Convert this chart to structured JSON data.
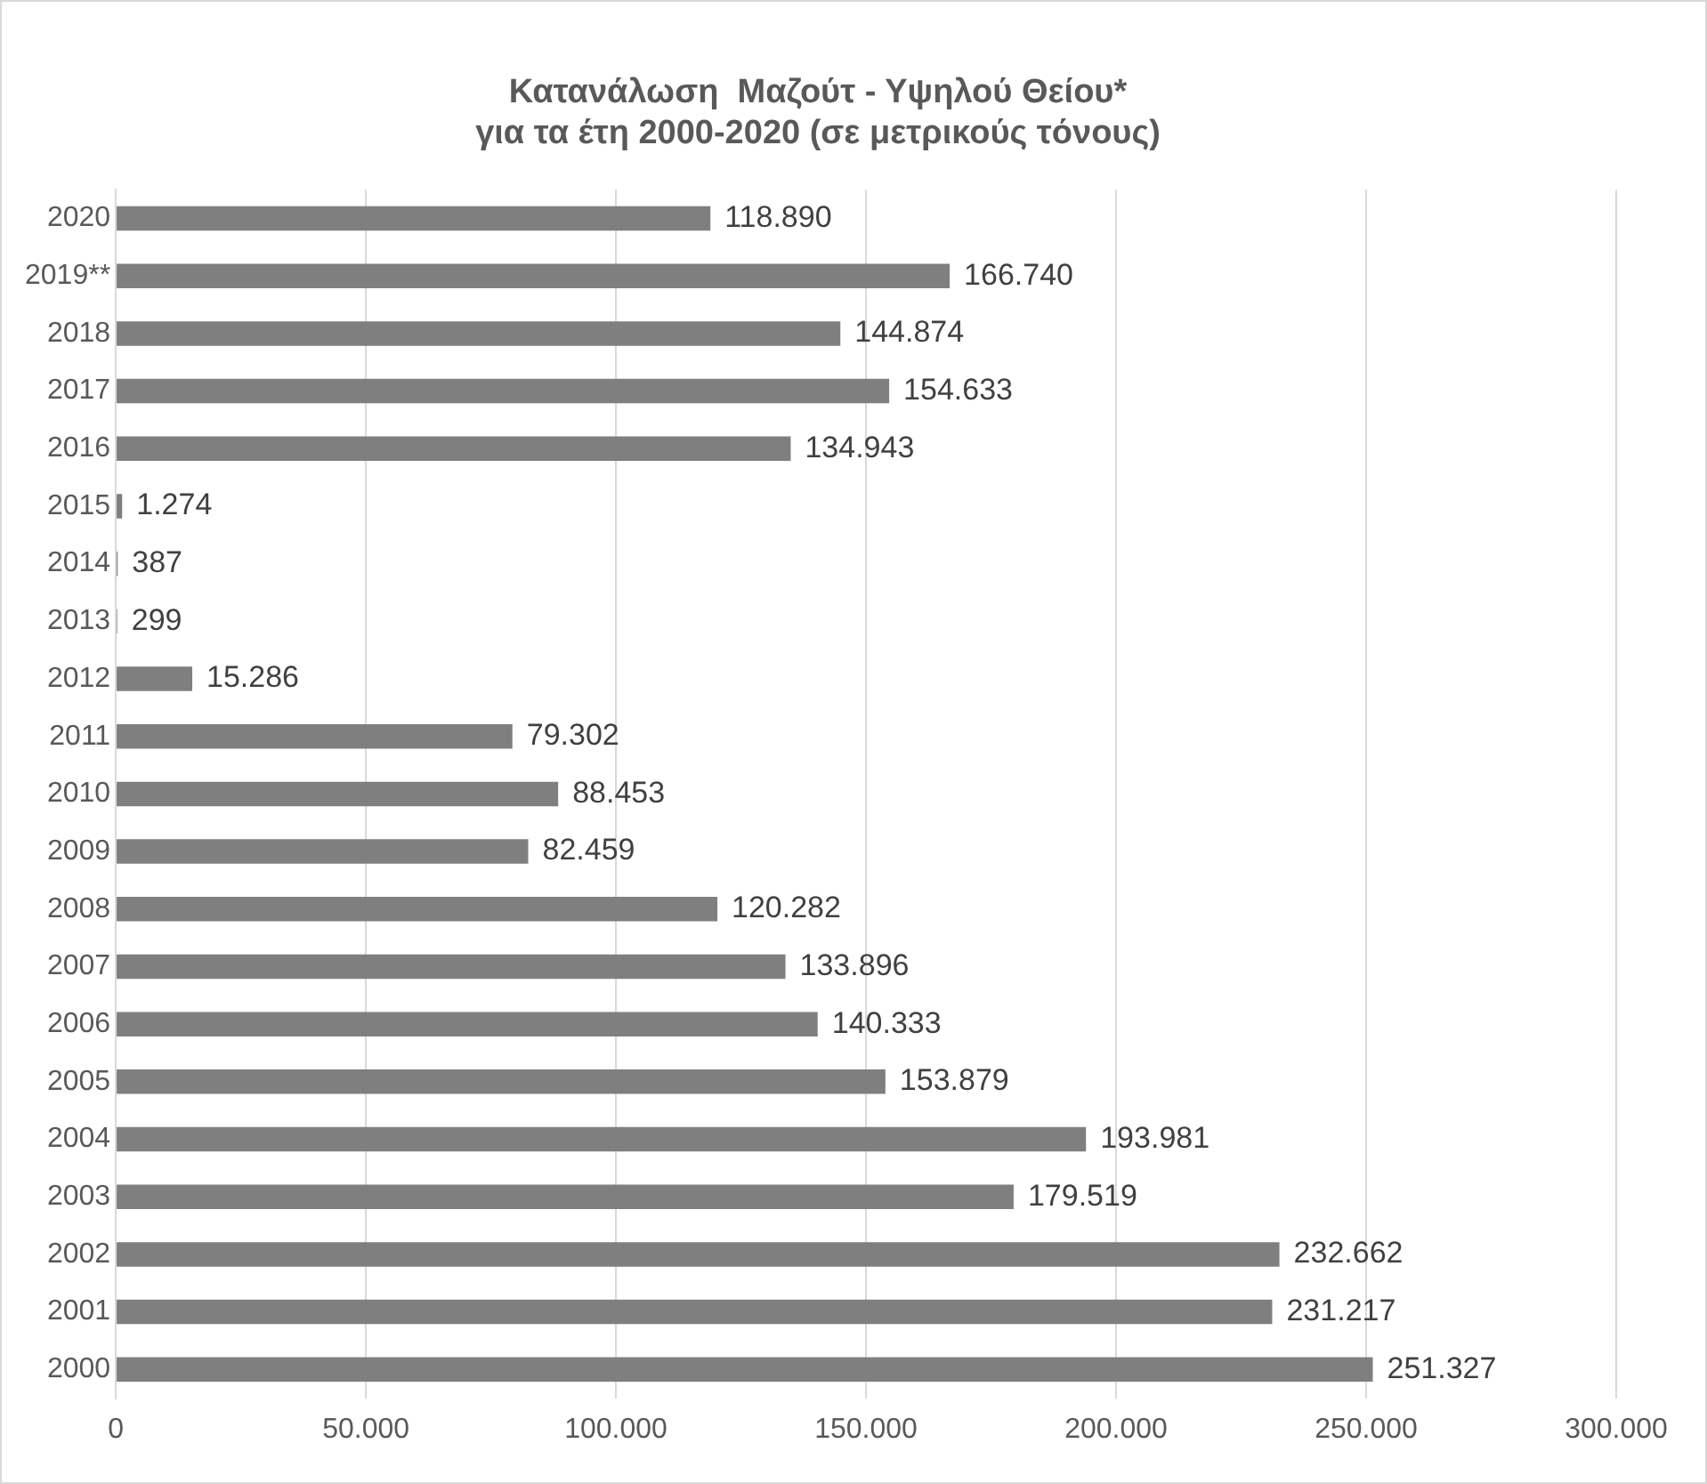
{
  "chart_data": {
    "type": "bar",
    "orientation": "horizontal",
    "title": "Κατανάλωση  Μαζούτ - Υψηλού Θείου*\nγια τα έτη 2000-2020 (σε μετρικούς τόνους)",
    "categories": [
      "2020",
      "2019**",
      "2018",
      "2017",
      "2016",
      "2015",
      "2014",
      "2013",
      "2012",
      "2011",
      "2010",
      "2009",
      "2008",
      "2007",
      "2006",
      "2005",
      "2004",
      "2003",
      "2002",
      "2001",
      "2000"
    ],
    "values": [
      118890,
      166740,
      144874,
      154633,
      134943,
      1274,
      387,
      299,
      15286,
      79302,
      88453,
      82459,
      120282,
      133896,
      140333,
      153879,
      193981,
      179519,
      232662,
      231217,
      251327
    ],
    "value_labels": [
      "118.890",
      "166.740",
      "144.874",
      "154.633",
      "134.943",
      "1.274",
      "387",
      "299",
      "15.286",
      "79.302",
      "88.453",
      "82.459",
      "120.282",
      "133.896",
      "140.333",
      "153.879",
      "193.981",
      "179.519",
      "232.662",
      "231.217",
      "251.327"
    ],
    "color": "#7f7f7f",
    "xlim": [
      0,
      300000
    ],
    "xticks": [
      0,
      {
        "value": 50000,
        "label": "50.000"
      },
      {
        "value": 100000,
        "label": "100.000"
      },
      {
        "value": 150000,
        "label": "150.000"
      },
      {
        "value": 200000,
        "label": "200.000"
      },
      {
        "value": 250000,
        "label": "250.000"
      },
      {
        "value": 300000,
        "label": "300.000"
      }
    ],
    "grid": "x",
    "legend": false
  }
}
